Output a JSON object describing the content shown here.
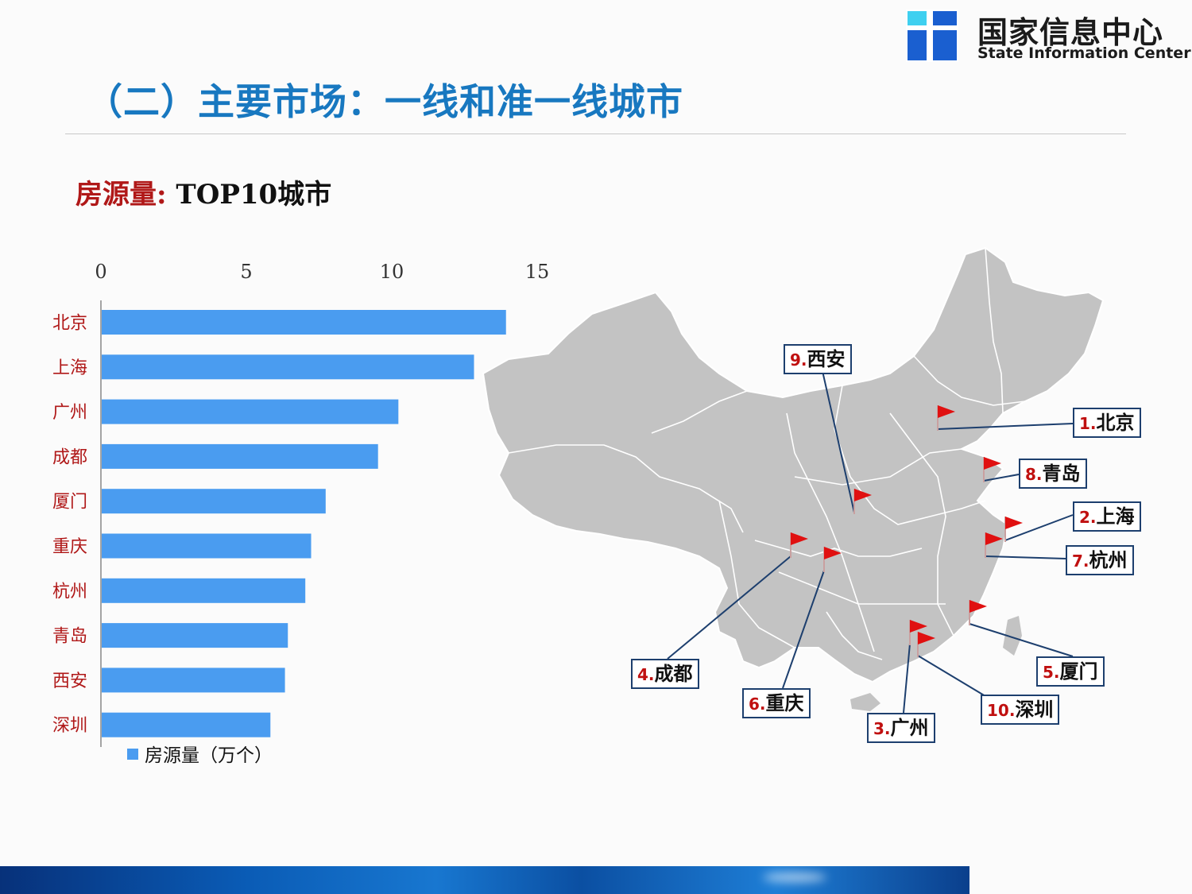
{
  "logo": {
    "cn": "国家信息中心",
    "en": "State Information Center"
  },
  "title": "（二）主要市场：一线和准一线城市",
  "subtitle": {
    "label": "房源量:",
    "text": " TOP10城市"
  },
  "colors": {
    "title": "#1878c0",
    "bar": "#4a9cf0",
    "category_label": "#b01818",
    "map_fill": "#c3c3c3",
    "flag": "#e01010",
    "callout_border": "#1d3f6e"
  },
  "chart_data": {
    "type": "bar",
    "orientation": "horizontal",
    "categories": [
      "北京",
      "上海",
      "广州",
      "成都",
      "厦门",
      "重庆",
      "杭州",
      "青岛",
      "西安",
      "深圳"
    ],
    "series": [
      {
        "name": "房源量（万个）",
        "values": [
          13.9,
          12.8,
          10.2,
          9.5,
          7.7,
          7.2,
          7.0,
          6.4,
          6.3,
          5.8
        ]
      }
    ],
    "xlim": [
      0,
      15
    ],
    "xticks": [
      "0",
      "5",
      "10",
      "15"
    ],
    "xaxis_position": "top",
    "legend_position": "bottom-left",
    "grid": false
  },
  "legend": {
    "label": "房源量（万个）"
  },
  "map": {
    "callouts": [
      {
        "num": "9.",
        "city": "西安"
      },
      {
        "num": "1.",
        "city": "北京"
      },
      {
        "num": "8.",
        "city": "青岛"
      },
      {
        "num": "2.",
        "city": "上海"
      },
      {
        "num": "7.",
        "city": "杭州"
      },
      {
        "num": "4.",
        "city": "成都"
      },
      {
        "num": "6.",
        "city": "重庆"
      },
      {
        "num": "5.",
        "city": "厦门"
      },
      {
        "num": "10.",
        "city": "深圳"
      },
      {
        "num": "3.",
        "city": "广州"
      }
    ]
  }
}
